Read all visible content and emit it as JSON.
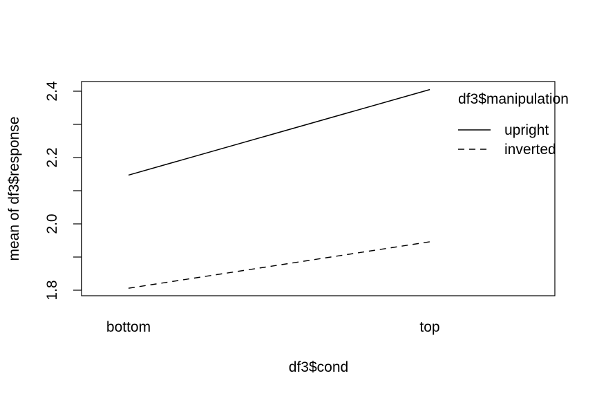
{
  "chart_data": {
    "type": "line",
    "title": "",
    "xlabel": "df3$cond",
    "ylabel": "mean of  df3$response",
    "categories": [
      "bottom",
      "top"
    ],
    "ylim": [
      1.8,
      2.4
    ],
    "yticks": [
      "1.8",
      "2.0",
      "2.2",
      "2.4"
    ],
    "legend": {
      "title": "df3$manipulation",
      "position": "top-right",
      "entries": [
        "upright",
        "inverted"
      ]
    },
    "series": [
      {
        "name": "upright",
        "values": [
          2.147,
          2.405
        ],
        "line_style": "solid"
      },
      {
        "name": "inverted",
        "values": [
          1.806,
          1.946
        ],
        "line_style": "dashed"
      }
    ],
    "grid": false
  }
}
